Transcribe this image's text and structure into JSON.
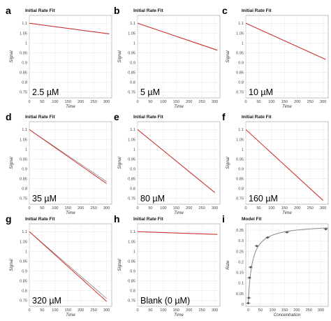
{
  "chart_data": [
    {
      "type": "line",
      "panel": "a",
      "title": "Initial Rate Fit",
      "xlabel": "Time",
      "ylabel": "Signal",
      "annotation": "2.5 µM",
      "xlim": [
        0,
        320
      ],
      "ylim": [
        0.72,
        1.14
      ],
      "x_ticks": [
        0,
        50,
        100,
        150,
        200,
        250,
        300
      ],
      "y_ticks": [
        0.75,
        0.8,
        0.85,
        0.9,
        0.95,
        1,
        1.05,
        1.1
      ],
      "y_tick_labels": [
        "0.75",
        "0.8",
        "0.85",
        "0.9",
        "0.95",
        "1",
        "1.05",
        "1.1"
      ],
      "series": [
        {
          "x": [
            0,
            310
          ],
          "y": [
            1.1,
            1.045
          ]
        },
        {
          "x": [
            0,
            310
          ],
          "y": [
            1.1,
            1.046
          ]
        }
      ],
      "grid": true
    },
    {
      "type": "line",
      "panel": "b",
      "title": "Initial Rate Fit",
      "xlabel": "Time",
      "ylabel": "Signal",
      "annotation": "5 µM",
      "xlim": [
        0,
        320
      ],
      "ylim": [
        0.72,
        1.14
      ],
      "x_ticks": [
        0,
        50,
        100,
        150,
        200,
        250,
        300
      ],
      "y_ticks": [
        0.75,
        0.8,
        0.85,
        0.9,
        0.95,
        1,
        1.05,
        1.1
      ],
      "y_tick_labels": [
        "0.75",
        "0.8",
        "0.85",
        "0.9",
        "0.95",
        "1",
        "1.05",
        "1.1"
      ],
      "series": [
        {
          "x": [
            0,
            310
          ],
          "y": [
            1.1,
            0.962
          ]
        },
        {
          "x": [
            0,
            310
          ],
          "y": [
            1.1,
            0.963
          ]
        }
      ],
      "grid": true
    },
    {
      "type": "line",
      "panel": "c",
      "title": "Initial Rate Fit",
      "xlabel": "Time",
      "ylabel": "Signal",
      "annotation": "10 µM",
      "xlim": [
        0,
        320
      ],
      "ylim": [
        0.72,
        1.14
      ],
      "x_ticks": [
        0,
        50,
        100,
        150,
        200,
        250,
        300
      ],
      "y_ticks": [
        0.75,
        0.8,
        0.85,
        0.9,
        0.95,
        1,
        1.05,
        1.1
      ],
      "y_tick_labels": [
        "0.75",
        "0.8",
        "0.85",
        "0.9",
        "0.95",
        "1",
        "1.05",
        "1.1"
      ],
      "series": [
        {
          "x": [
            0,
            310
          ],
          "y": [
            1.1,
            0.915
          ]
        },
        {
          "x": [
            0,
            310
          ],
          "y": [
            1.1,
            0.916
          ]
        }
      ],
      "grid": true
    },
    {
      "type": "line",
      "panel": "d",
      "title": "Initial Rate Fit",
      "xlabel": "Time",
      "ylabel": "Signal",
      "annotation": "35 µM",
      "xlim": [
        0,
        320
      ],
      "ylim": [
        0.72,
        1.14
      ],
      "x_ticks": [
        0,
        50,
        100,
        150,
        200,
        250,
        300
      ],
      "y_ticks": [
        0.75,
        0.8,
        0.85,
        0.9,
        0.95,
        1,
        1.05,
        1.1
      ],
      "y_tick_labels": [
        "0.75",
        "0.8",
        "0.85",
        "0.9",
        "0.95",
        "1",
        "1.05",
        "1.1"
      ],
      "series": [
        {
          "x": [
            0,
            300
          ],
          "y": [
            1.1,
            0.835
          ]
        },
        {
          "x": [
            0,
            300
          ],
          "y": [
            1.1,
            0.825
          ]
        }
      ],
      "grid": true
    },
    {
      "type": "line",
      "panel": "e",
      "title": "Initial Rate Fit",
      "xlabel": "Time",
      "ylabel": "Signal",
      "annotation": "80 µM",
      "xlim": [
        0,
        320
      ],
      "ylim": [
        0.72,
        1.14
      ],
      "x_ticks": [
        0,
        50,
        100,
        150,
        200,
        250,
        300
      ],
      "y_ticks": [
        0.75,
        0.8,
        0.85,
        0.9,
        0.95,
        1,
        1.05,
        1.1
      ],
      "y_tick_labels": [
        "0.75",
        "0.8",
        "0.85",
        "0.9",
        "0.95",
        "1",
        "1.05",
        "1.1"
      ],
      "series": [
        {
          "x": [
            0,
            300
          ],
          "y": [
            1.1,
            0.78
          ]
        },
        {
          "x": [
            0,
            300
          ],
          "y": [
            1.1,
            0.779
          ]
        }
      ],
      "grid": true
    },
    {
      "type": "line",
      "panel": "f",
      "title": "Initial Rate Fit",
      "xlabel": "Time",
      "ylabel": "Signal",
      "annotation": "160 µM",
      "xlim": [
        0,
        320
      ],
      "ylim": [
        0.72,
        1.14
      ],
      "x_ticks": [
        0,
        50,
        100,
        150,
        200,
        250,
        300
      ],
      "y_ticks": [
        0.75,
        0.8,
        0.85,
        0.9,
        0.95,
        1,
        1.05,
        1.1
      ],
      "y_tick_labels": [
        "0.75",
        "0.8",
        "0.85",
        "0.9",
        "0.95",
        "1",
        "1.05",
        "1.1"
      ],
      "series": [
        {
          "x": [
            0,
            300
          ],
          "y": [
            1.1,
            0.74
          ]
        },
        {
          "x": [
            0,
            300
          ],
          "y": [
            1.1,
            0.739
          ]
        }
      ],
      "grid": true
    },
    {
      "type": "line",
      "panel": "g",
      "title": "Initial Rate Fit",
      "xlabel": "Time",
      "ylabel": "Signal",
      "annotation": "320 µM",
      "xlim": [
        0,
        320
      ],
      "ylim": [
        0.72,
        1.14
      ],
      "x_ticks": [
        0,
        50,
        100,
        150,
        200,
        250,
        300
      ],
      "y_ticks": [
        0.75,
        0.8,
        0.85,
        0.9,
        0.95,
        1,
        1.05,
        1.1
      ],
      "y_tick_labels": [
        "0.75",
        "0.8",
        "0.85",
        "0.9",
        "0.95",
        "1",
        "1.05",
        "1.1"
      ],
      "series": [
        {
          "x": [
            0,
            300
          ],
          "y": [
            1.1,
            0.76
          ]
        },
        {
          "x": [
            0,
            300
          ],
          "y": [
            1.1,
            0.745
          ]
        }
      ],
      "grid": true
    },
    {
      "type": "line",
      "panel": "h",
      "title": "Initial Rate Fit",
      "xlabel": "Time",
      "ylabel": "Signal",
      "annotation": "Blank (0 µM)",
      "xlim": [
        0,
        320
      ],
      "ylim": [
        0.72,
        1.14
      ],
      "x_ticks": [
        0,
        50,
        100,
        150,
        200,
        250,
        300
      ],
      "y_ticks": [
        0.75,
        0.8,
        0.85,
        0.9,
        0.95,
        1,
        1.05,
        1.1
      ],
      "y_tick_labels": [
        "0.75",
        "0.8",
        "0.85",
        "0.9",
        "0.95",
        "1",
        "1.05",
        "1.1"
      ],
      "series": [
        {
          "x": [
            0,
            310
          ],
          "y": [
            1.1,
            1.085
          ]
        },
        {
          "x": [
            0,
            310
          ],
          "y": [
            1.1,
            1.086
          ]
        }
      ],
      "grid": true
    },
    {
      "type": "scatter",
      "panel": "i",
      "title": "Model Fit",
      "xlabel": "Concentration",
      "ylabel": "Rate",
      "annotation": "",
      "xlim": [
        -10,
        330
      ],
      "ylim": [
        -0.01,
        0.38
      ],
      "x_ticks": [
        0,
        50,
        100,
        150,
        200,
        250,
        300
      ],
      "y_ticks": [
        0,
        0.05,
        0.1,
        0.15,
        0.2,
        0.25,
        0.3,
        0.35
      ],
      "y_tick_labels": [
        "0",
        "0.05",
        "0.1",
        "0.15",
        "0.2",
        "0.25",
        "0.3",
        "0.35"
      ],
      "points": {
        "x": [
          0,
          2.5,
          5,
          10,
          35,
          80,
          160,
          320
        ],
        "y": [
          0.005,
          0.03,
          0.125,
          0.175,
          0.275,
          0.315,
          0.34,
          0.355
        ],
        "err": [
          0.003,
          0.003,
          0.004,
          0.004,
          0.005,
          0.005,
          0.004,
          0.004
        ]
      },
      "model_curve": {
        "vmax": 0.375,
        "km": 16,
        "offset": 0.003
      },
      "grid": true
    }
  ]
}
